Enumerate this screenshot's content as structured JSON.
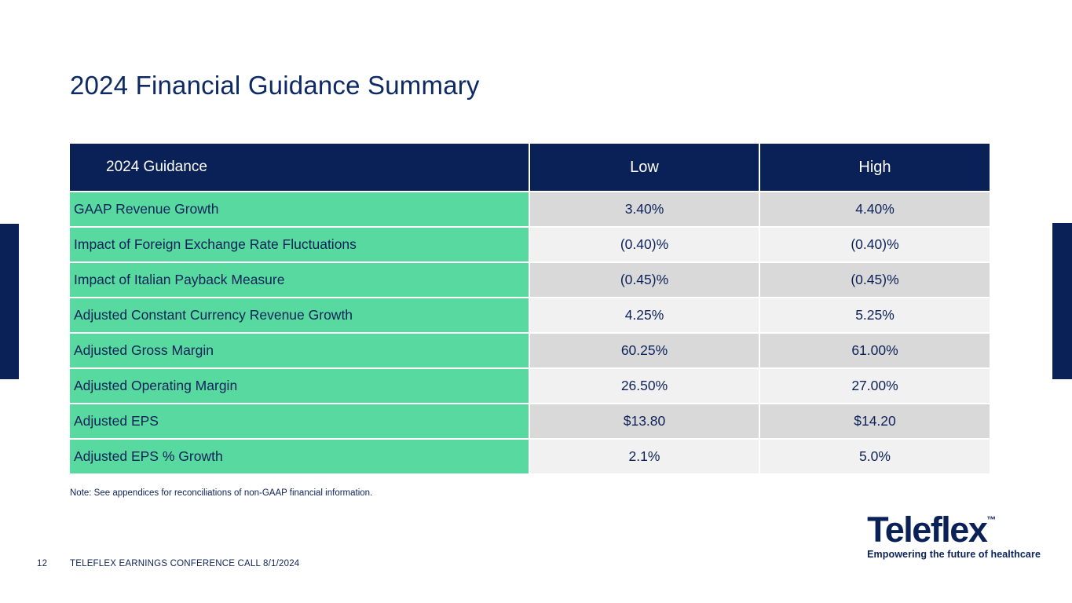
{
  "slide": {
    "title": "2024 Financial Guidance Summary",
    "note": "Note: See appendices for reconciliations of non-GAAP financial information.",
    "page_number": "12",
    "footer_text": "TELEFLEX EARNINGS CONFERENCE CALL 8/1/2024"
  },
  "logo": {
    "brand": "Teleflex",
    "trademark": "™",
    "tagline": "Empowering the future of healthcare"
  },
  "colors": {
    "navy": "#0a2158",
    "green_label_column": "#57d9a0",
    "row_shade_dark": "#d9d9d9",
    "row_shade_light": "#f1f1f1",
    "header_text": "#ffffff"
  },
  "chart_data": {
    "type": "table",
    "columns": [
      "2024 Guidance",
      "Low",
      "High"
    ],
    "rows": [
      {
        "label": "GAAP Revenue Growth",
        "low": "3.40%",
        "high": "4.40%"
      },
      {
        "label": "Impact of Foreign Exchange Rate Fluctuations",
        "low": "(0.40)%",
        "high": "(0.40)%"
      },
      {
        "label": "Impact of Italian Payback Measure",
        "low": "(0.45)%",
        "high": "(0.45)%"
      },
      {
        "label": "Adjusted Constant Currency Revenue Growth",
        "low": "4.25%",
        "high": "5.25%"
      },
      {
        "label": "Adjusted Gross Margin",
        "low": "60.25%",
        "high": "61.00%"
      },
      {
        "label": "Adjusted Operating Margin",
        "low": "26.50%",
        "high": "27.00%"
      },
      {
        "label": "Adjusted EPS",
        "low": "$13.80",
        "high": "$14.20"
      },
      {
        "label": "Adjusted EPS % Growth",
        "low": "2.1%",
        "high": "5.0%"
      }
    ]
  }
}
